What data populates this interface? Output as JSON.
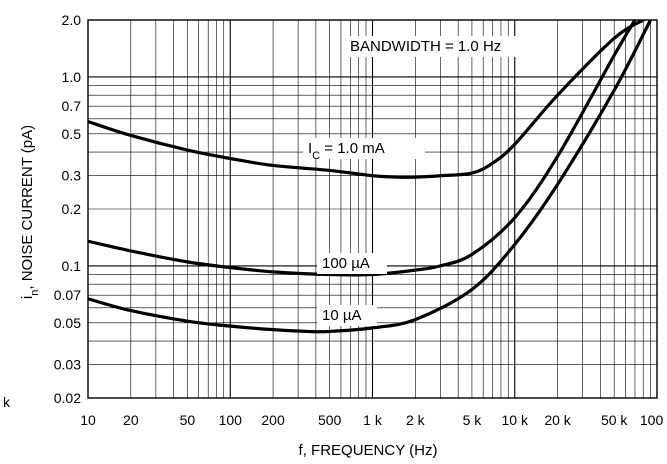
{
  "chart_data": {
    "type": "line",
    "title": "",
    "xlabel": "f, FREQUENCY (Hz)",
    "ylabel": "i",
    "ylabel_subscript": "n",
    "ylabel_rest": ", NOISE CURRENT (pA)",
    "x_scale": "log",
    "y_scale": "log",
    "xlim": [
      10,
      100000
    ],
    "ylim": [
      0.02,
      2.0
    ],
    "grid": true,
    "x_ticks": [
      {
        "value": 10,
        "label": "10"
      },
      {
        "value": 20,
        "label": "20"
      },
      {
        "value": 50,
        "label": "50"
      },
      {
        "value": 100,
        "label": "100"
      },
      {
        "value": 200,
        "label": "200"
      },
      {
        "value": 500,
        "label": "500"
      },
      {
        "value": 1000,
        "label": "1 k"
      },
      {
        "value": 2000,
        "label": "2 k"
      },
      {
        "value": 5000,
        "label": "5 k"
      },
      {
        "value": 10000,
        "label": "10 k"
      },
      {
        "value": 20000,
        "label": "20 k"
      },
      {
        "value": 50000,
        "label": "50 k"
      },
      {
        "value": 100000,
        "label": "100 k"
      }
    ],
    "y_ticks": [
      {
        "value": 2.0,
        "label": "2.0"
      },
      {
        "value": 1.0,
        "label": "1.0"
      },
      {
        "value": 0.7,
        "label": "0.7"
      },
      {
        "value": 0.5,
        "label": "0.5"
      },
      {
        "value": 0.3,
        "label": "0.3"
      },
      {
        "value": 0.2,
        "label": "0.2"
      },
      {
        "value": 0.1,
        "label": "0.1"
      },
      {
        "value": 0.07,
        "label": "0.07"
      },
      {
        "value": 0.05,
        "label": "0.05"
      },
      {
        "value": 0.03,
        "label": "0.03"
      },
      {
        "value": 0.02,
        "label": "0.02"
      }
    ],
    "stray_label": "k",
    "annotations": [
      {
        "id": "bandwidth",
        "text": "BANDWIDTH = 1.0 Hz"
      }
    ],
    "series": [
      {
        "name": "IC = 1.0 mA",
        "name_main": "I",
        "name_sub": "C",
        "name_rest": " = 1.0 mA",
        "x": [
          10,
          20,
          50,
          100,
          200,
          500,
          1000,
          1500,
          2000,
          3000,
          5000,
          7000,
          10000,
          20000,
          50000,
          80000
        ],
        "y": [
          0.58,
          0.49,
          0.41,
          0.37,
          0.34,
          0.32,
          0.3,
          0.295,
          0.295,
          0.3,
          0.31,
          0.35,
          0.44,
          0.8,
          1.6,
          2.0
        ]
      },
      {
        "name": "100 µA",
        "x": [
          10,
          20,
          50,
          100,
          200,
          500,
          1000,
          2000,
          3000,
          5000,
          10000,
          20000,
          50000,
          70000
        ],
        "y": [
          0.135,
          0.12,
          0.105,
          0.098,
          0.093,
          0.09,
          0.09,
          0.095,
          0.1,
          0.115,
          0.18,
          0.38,
          1.3,
          2.0
        ]
      },
      {
        "name": "10 µA",
        "x": [
          10,
          20,
          50,
          100,
          200,
          350,
          500,
          1000,
          2000,
          5000,
          10000,
          20000,
          50000,
          90000
        ],
        "y": [
          0.067,
          0.058,
          0.051,
          0.048,
          0.046,
          0.045,
          0.045,
          0.047,
          0.052,
          0.075,
          0.13,
          0.27,
          0.85,
          2.0
        ]
      }
    ]
  }
}
